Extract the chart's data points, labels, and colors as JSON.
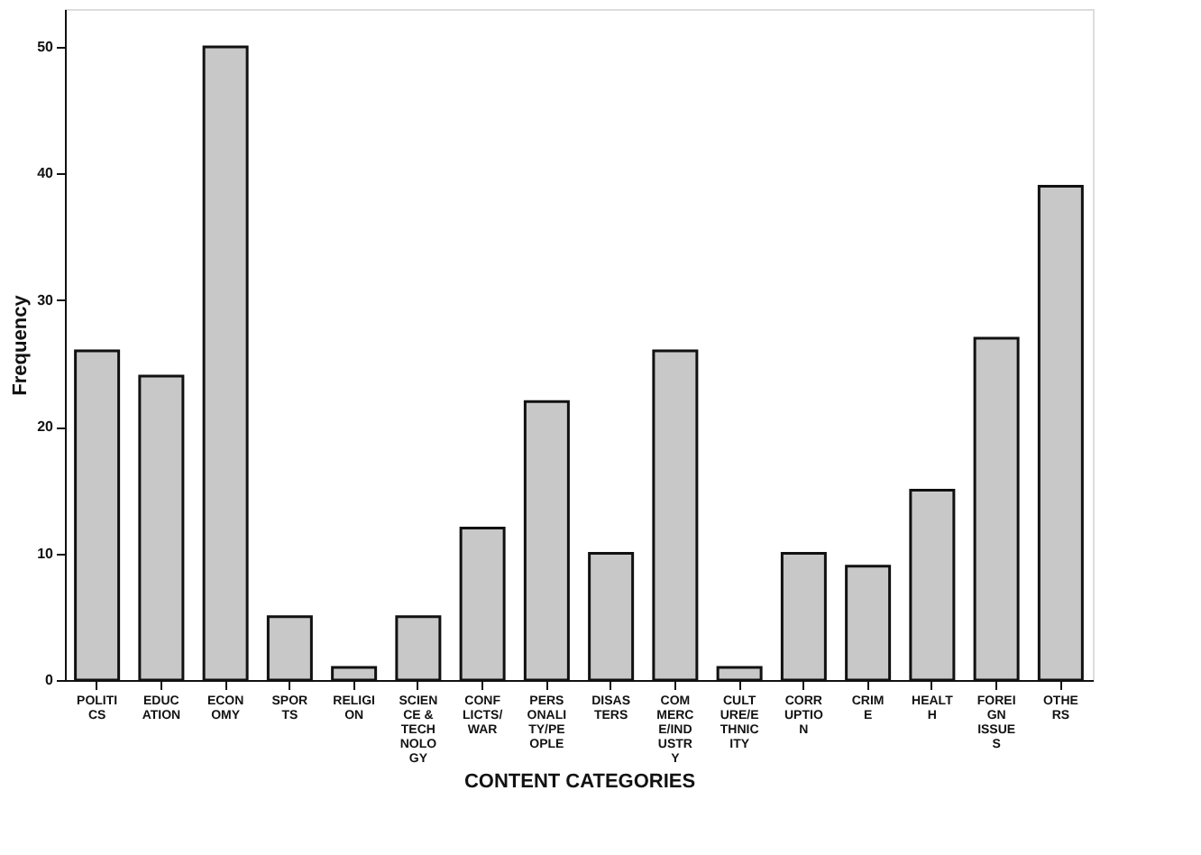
{
  "chart_data": {
    "type": "bar",
    "xlabel": "CONTENT CATEGORIES",
    "ylabel": "Frequency",
    "categories": [
      "POLITI\nCS",
      "EDUC\nATION",
      "ECON\nOMY",
      "SPOR\nTS",
      "RELIGI\nON",
      "SCIEN\nCE &\nTECH\nNOLO\nGY",
      "CONF\nLICTS/\nWAR",
      "PERS\nONALI\nTY/PE\nOPLE",
      "DISAS\nTERS",
      "COM\nMERC\nE/IND\nUSTR\nY",
      "CULT\nURE/E\nTHNIC\nITY",
      "CORR\nUPTIO\nN",
      "CRIM\nE",
      "HEALT\nH",
      "FOREI\nGN\nISSUE\nS",
      "OTHE\nRS"
    ],
    "values": [
      26,
      24,
      50,
      5,
      1,
      5,
      12,
      22,
      10,
      26,
      1,
      10,
      9,
      15,
      27,
      39
    ],
    "color": "#c8c8c8",
    "ylim": [
      0,
      53
    ],
    "yticks": [
      0,
      10,
      20,
      30,
      40,
      50
    ],
    "grid": false
  }
}
